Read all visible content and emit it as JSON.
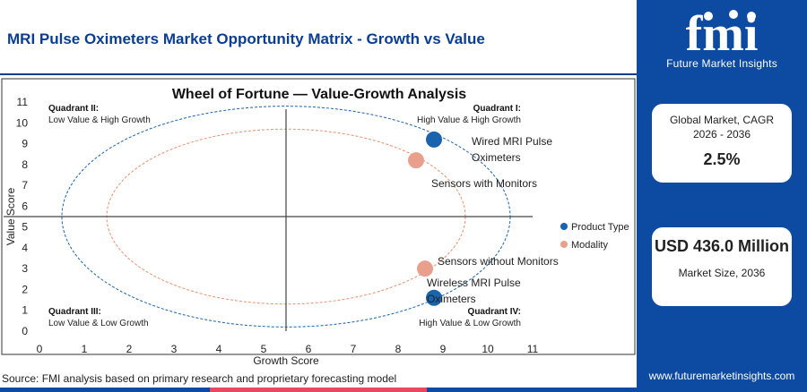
{
  "page": {
    "title": "MRI Pulse Oximeters Market Opportunity Matrix - Growth vs Value",
    "source": "Source: FMI analysis based on primary research and proprietary forecasting model"
  },
  "bottom_bar_colors": [
    "#0d4aa2",
    "#e8495f",
    "#0d4aa2"
  ],
  "brand": {
    "logo_text": "fmi",
    "logo_subtitle": "Future Market Insights",
    "website": "www.futuremarketinsights.com",
    "panel_color": "#0d4aa2"
  },
  "cards": [
    {
      "label": "Global Market, CAGR 2026 - 2036",
      "value": "2.5%"
    },
    {
      "label": "Market Size, 2036",
      "value": "USD 436.0 Million"
    }
  ],
  "chart_data": {
    "type": "scatter",
    "title": "Wheel of Fortune — Value-Growth Analysis",
    "xlabel": "Growth Score",
    "ylabel": "Value Score",
    "xlim": [
      0,
      11
    ],
    "ylim": [
      0,
      11
    ],
    "xticks": [
      0,
      1,
      2,
      3,
      4,
      5,
      6,
      7,
      8,
      9,
      10,
      11
    ],
    "yticks": [
      0,
      1,
      2,
      3,
      4,
      5,
      6,
      7,
      8,
      9,
      10,
      11
    ],
    "divider": {
      "x": 5.5,
      "y": 5.5
    },
    "grid": false,
    "legend_position": "right",
    "quadrants": [
      {
        "name": "Quadrant II:",
        "desc": "Low Value & High Growth",
        "pos": "top-left"
      },
      {
        "name": "Quadrant I:",
        "desc": "High Value & High Growth",
        "pos": "top-right"
      },
      {
        "name": "Quadrant III:",
        "desc": "Low Value & Low Growth",
        "pos": "bottom-left"
      },
      {
        "name": "Quadrant IV:",
        "desc": "High Value & Low Growth",
        "pos": "bottom-right"
      }
    ],
    "series": [
      {
        "name": "Product Type",
        "color": "#1a63ad",
        "points": [
          {
            "label": "Wired MRI Pulse Oximeters",
            "x": 8.8,
            "y": 9.2
          },
          {
            "label": "Wireless MRI Pulse Oximeters",
            "x": 8.8,
            "y": 1.6
          }
        ]
      },
      {
        "name": "Modality",
        "color": "#e8a08c",
        "points": [
          {
            "label": "Sensors with Monitors",
            "x": 8.4,
            "y": 8.2
          },
          {
            "label": "Sensors without Monitors",
            "x": 8.6,
            "y": 3.0
          }
        ]
      }
    ],
    "ellipses": [
      {
        "series": "Product Type",
        "cx": 5.5,
        "cy": 5.5,
        "rx": 5.0,
        "ry": 5.3,
        "color": "#1a63ad"
      },
      {
        "series": "Modality",
        "cx": 5.5,
        "cy": 5.5,
        "rx": 4.0,
        "ry": 4.2,
        "color": "#e8906f"
      }
    ]
  }
}
